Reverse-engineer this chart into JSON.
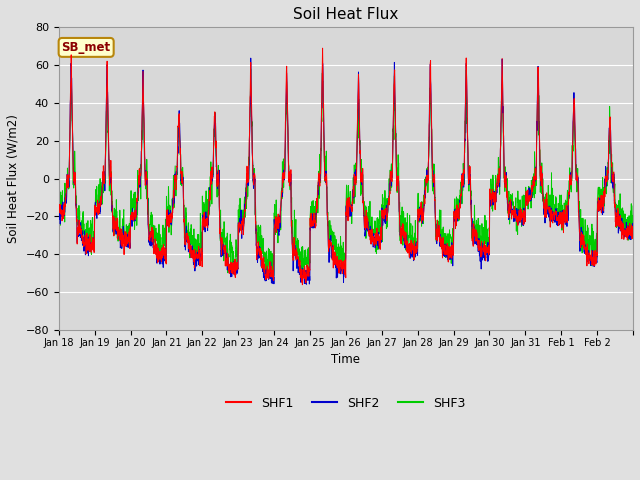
{
  "title": "Soil Heat Flux",
  "ylabel": "Soil Heat Flux (W/m2)",
  "xlabel": "Time",
  "ylim": [
    -80,
    80
  ],
  "yticks": [
    -80,
    -60,
    -40,
    -20,
    0,
    20,
    40,
    60,
    80
  ],
  "colors": {
    "SHF1": "#FF0000",
    "SHF2": "#0000CC",
    "SHF3": "#00CC00"
  },
  "legend_labels": [
    "SHF1",
    "SHF2",
    "SHF3"
  ],
  "annotation_text": "SB_met",
  "annotation_color": "#8B0000",
  "annotation_bg": "#FFFFCC",
  "annotation_edge": "#B8860B",
  "fig_bg_color": "#E0E0E0",
  "plot_bg_color": "#D8D8D8",
  "grid_color": "#FFFFFF",
  "tick_labels": [
    "Jan 18",
    "Jan 19",
    "Jan 20",
    "Jan 21",
    "Jan 22",
    "Jan 23",
    "Jan 24",
    "Jan 25",
    "Jan 26",
    "Jan 27",
    "Jan 28",
    "Jan 29",
    "Jan 30",
    "Jan 31",
    "Feb 1",
    "Feb 2"
  ],
  "num_days": 16,
  "points_per_day": 144,
  "day_peaks": [
    65,
    62,
    56,
    38,
    38,
    60,
    60,
    68,
    55,
    62,
    63,
    65,
    65,
    62,
    48,
    35
  ],
  "day_troughs": [
    -35,
    -32,
    -40,
    -41,
    -47,
    -50,
    -50,
    -47,
    -32,
    -38,
    -38,
    -38,
    -20,
    -20,
    -42,
    -28
  ]
}
